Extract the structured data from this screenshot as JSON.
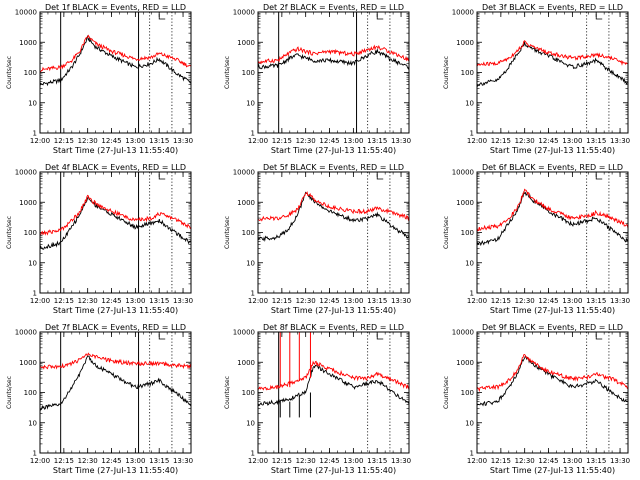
{
  "chart_data": [
    {
      "type": "line",
      "title": "Det 1f BLACK = Events, RED = LLD",
      "xlabel": "Start Time (27-Jul-13 11:55:40)",
      "ylabel": "Counts/sec",
      "yscale": "log",
      "ylim": [
        1,
        10000
      ],
      "xlim": [
        "12:00",
        "13:35"
      ],
      "xticks": [
        "12:00",
        "12:15",
        "12:30",
        "12:45",
        "13:00",
        "13:15",
        "13:30"
      ],
      "yticks": [
        "1",
        "10",
        "100",
        "1000",
        "10000"
      ],
      "vlines_solid": [
        "12:13",
        "13:02"
      ],
      "vlines_dotted": [
        "13:09",
        "13:23"
      ],
      "x": [
        "12:00",
        "12:13",
        "12:20",
        "12:25",
        "12:30",
        "12:35",
        "12:45",
        "13:00",
        "13:10",
        "13:15",
        "13:25",
        "13:35"
      ],
      "series": [
        {
          "name": "BLACK = Events",
          "color": "#000000",
          "values": [
            40,
            55,
            150,
            400,
            1400,
            700,
            350,
            150,
            200,
            280,
            100,
            45
          ]
        },
        {
          "name": "RED = LLD",
          "color": "#ff0000",
          "values": [
            120,
            150,
            250,
            500,
            1600,
            900,
            500,
            280,
            320,
            420,
            280,
            150
          ]
        }
      ]
    },
    {
      "type": "line",
      "title": "Det 2f BLACK = Events, RED = LLD",
      "xlabel": "Start Time (27-Jul-13 11:55:40)",
      "ylabel": "Counts/sec",
      "yscale": "log",
      "ylim": [
        1,
        10000
      ],
      "xlim": [
        "12:00",
        "13:35"
      ],
      "xticks": [
        "12:00",
        "12:15",
        "12:30",
        "12:45",
        "13:00",
        "13:15",
        "13:30"
      ],
      "yticks": [
        "1",
        "10",
        "100",
        "1000",
        "10000"
      ],
      "vlines_solid": [
        "12:13",
        "13:02"
      ],
      "vlines_dotted": [
        "13:09",
        "13:23"
      ],
      "x": [
        "12:00",
        "12:13",
        "12:20",
        "12:25",
        "12:30",
        "12:35",
        "12:45",
        "13:00",
        "13:10",
        "13:15",
        "13:25",
        "13:35"
      ],
      "series": [
        {
          "name": "BLACK = Events",
          "color": "#000000",
          "values": [
            150,
            170,
            300,
            380,
            300,
            250,
            250,
            200,
            400,
            500,
            250,
            150
          ]
        },
        {
          "name": "RED = LLD",
          "color": "#ff0000",
          "values": [
            220,
            260,
            450,
            600,
            500,
            420,
            500,
            400,
            600,
            700,
            450,
            260
          ]
        }
      ]
    },
    {
      "type": "line",
      "title": "Det 3f BLACK = Events, RED = LLD",
      "xlabel": "Start Time (27-Jul-13 11:55:40)",
      "ylabel": "Counts/sec",
      "yscale": "log",
      "ylim": [
        1,
        10000
      ],
      "xlim": [
        "12:00",
        "13:35"
      ],
      "xticks": [
        "12:00",
        "12:15",
        "12:30",
        "12:45",
        "13:00",
        "13:15",
        "13:30"
      ],
      "yticks": [
        "1",
        "10",
        "100",
        "1000",
        "10000"
      ],
      "vlines_solid": [],
      "vlines_dotted": [
        "13:09",
        "13:23"
      ],
      "x": [
        "12:00",
        "12:13",
        "12:20",
        "12:25",
        "12:30",
        "12:35",
        "12:45",
        "13:00",
        "13:10",
        "13:15",
        "13:25",
        "13:35"
      ],
      "series": [
        {
          "name": "BLACK = Events",
          "color": "#000000",
          "values": [
            40,
            55,
            150,
            400,
            900,
            600,
            350,
            150,
            200,
            250,
            100,
            45
          ]
        },
        {
          "name": "RED = LLD",
          "color": "#ff0000",
          "values": [
            180,
            200,
            300,
            500,
            1000,
            700,
            450,
            300,
            350,
            400,
            300,
            180
          ]
        }
      ]
    },
    {
      "type": "line",
      "title": "Det 4f BLACK = Events, RED = LLD",
      "xlabel": "Start Time (27-Jul-13 11:55:40)",
      "ylabel": "Counts/sec",
      "yscale": "log",
      "ylim": [
        1,
        10000
      ],
      "xlim": [
        "12:00",
        "13:35"
      ],
      "xticks": [
        "12:00",
        "12:15",
        "12:30",
        "12:45",
        "13:00",
        "13:15",
        "13:30"
      ],
      "yticks": [
        "1",
        "10",
        "100",
        "1000",
        "10000"
      ],
      "vlines_solid": [
        "12:13",
        "13:02"
      ],
      "vlines_dotted": [
        "13:09",
        "13:23"
      ],
      "x": [
        "12:00",
        "12:13",
        "12:20",
        "12:25",
        "12:30",
        "12:35",
        "12:45",
        "13:00",
        "13:10",
        "13:15",
        "13:25",
        "13:35"
      ],
      "series": [
        {
          "name": "BLACK = Events",
          "color": "#000000",
          "values": [
            30,
            45,
            150,
            400,
            1400,
            800,
            400,
            150,
            200,
            250,
            100,
            45
          ]
        },
        {
          "name": "RED = LLD",
          "color": "#ff0000",
          "values": [
            90,
            120,
            250,
            500,
            1500,
            900,
            500,
            250,
            300,
            420,
            280,
            150
          ]
        }
      ]
    },
    {
      "type": "line",
      "title": "Det 5f BLACK = Events, RED = LLD",
      "xlabel": "Start Time (27-Jul-13 11:55:40)",
      "ylabel": "Counts/sec",
      "yscale": "log",
      "ylim": [
        1,
        10000
      ],
      "xlim": [
        "12:00",
        "13:35"
      ],
      "xticks": [
        "12:00",
        "12:15",
        "12:30",
        "12:45",
        "13:00",
        "13:15",
        "13:30"
      ],
      "yticks": [
        "1",
        "10",
        "100",
        "1000",
        "10000"
      ],
      "vlines_solid": [],
      "vlines_dotted": [
        "13:09",
        "13:23"
      ],
      "x": [
        "12:00",
        "12:13",
        "12:20",
        "12:25",
        "12:30",
        "12:35",
        "12:45",
        "13:00",
        "13:10",
        "13:15",
        "13:25",
        "13:35"
      ],
      "series": [
        {
          "name": "BLACK = Events",
          "color": "#000000",
          "values": [
            60,
            70,
            150,
            400,
            2000,
            1100,
            500,
            250,
            300,
            380,
            150,
            70
          ]
        },
        {
          "name": "RED = LLD",
          "color": "#ff0000",
          "values": [
            280,
            300,
            400,
            600,
            2200,
            1300,
            700,
            500,
            500,
            650,
            450,
            300
          ]
        }
      ]
    },
    {
      "type": "line",
      "title": "Det 6f BLACK = Events, RED = LLD",
      "xlabel": "Start Time (27-Jul-13 11:55:40)",
      "ylabel": "Counts/sec",
      "yscale": "log",
      "ylim": [
        1,
        10000
      ],
      "xlim": [
        "12:00",
        "13:35"
      ],
      "xticks": [
        "12:00",
        "12:15",
        "12:30",
        "12:45",
        "13:00",
        "13:15",
        "13:30"
      ],
      "yticks": [
        "1",
        "10",
        "100",
        "1000",
        "10000"
      ],
      "vlines_solid": [],
      "vlines_dotted": [
        "13:09",
        "13:23"
      ],
      "x": [
        "12:00",
        "12:13",
        "12:20",
        "12:25",
        "12:30",
        "12:35",
        "12:45",
        "13:00",
        "13:10",
        "13:15",
        "13:25",
        "13:35"
      ],
      "series": [
        {
          "name": "BLACK = Events",
          "color": "#000000",
          "values": [
            40,
            60,
            200,
            500,
            2200,
            1200,
            500,
            180,
            250,
            300,
            120,
            50
          ]
        },
        {
          "name": "RED = LLD",
          "color": "#ff0000",
          "values": [
            130,
            160,
            300,
            600,
            2400,
            1300,
            600,
            300,
            350,
            450,
            300,
            160
          ]
        }
      ]
    },
    {
      "type": "line",
      "title": "Det 7f BLACK = Events, RED = LLD",
      "xlabel": "Start Time (27-Jul-13 11:55:40)",
      "ylabel": "Counts/sec",
      "yscale": "log",
      "ylim": [
        1,
        10000
      ],
      "xlim": [
        "12:00",
        "13:35"
      ],
      "xticks": [
        "12:00",
        "12:15",
        "12:30",
        "12:45",
        "13:00",
        "13:15",
        "13:30"
      ],
      "yticks": [
        "1",
        "10",
        "100",
        "1000",
        "10000"
      ],
      "vlines_solid": [
        "12:13",
        "13:02"
      ],
      "vlines_dotted": [
        "13:09",
        "13:23"
      ],
      "x": [
        "12:00",
        "12:13",
        "12:20",
        "12:25",
        "12:30",
        "12:35",
        "12:45",
        "13:00",
        "13:10",
        "13:15",
        "13:25",
        "13:35"
      ],
      "series": [
        {
          "name": "BLACK = Events",
          "color": "#000000",
          "values": [
            30,
            40,
            150,
            400,
            1600,
            800,
            400,
            150,
            200,
            250,
            100,
            40
          ]
        },
        {
          "name": "RED = LLD",
          "color": "#ff0000",
          "values": [
            700,
            700,
            900,
            1200,
            1800,
            1500,
            1100,
            900,
            900,
            900,
            800,
            700
          ]
        }
      ]
    },
    {
      "type": "line",
      "title": "Det 8f BLACK = Events, RED = LLD",
      "xlabel": "Start Time (27-Jul-13 11:55:40)",
      "ylabel": "Counts/sec",
      "yscale": "log",
      "ylim": [
        1,
        10000
      ],
      "xlim": [
        "12:00",
        "13:35"
      ],
      "xticks": [
        "12:00",
        "12:15",
        "12:30",
        "12:45",
        "13:00",
        "13:15",
        "13:30"
      ],
      "yticks": [
        "1",
        "10",
        "100",
        "1000",
        "10000"
      ],
      "vlines_solid": [
        "12:13"
      ],
      "vlines_dotted": [
        "13:09",
        "13:23"
      ],
      "x": [
        "12:00",
        "12:13",
        "12:20",
        "12:25",
        "12:30",
        "12:35",
        "12:45",
        "13:00",
        "13:10",
        "13:15",
        "13:25",
        "13:35"
      ],
      "series": [
        {
          "name": "BLACK = Events",
          "color": "#000000",
          "values": [
            40,
            50,
            60,
            80,
            100,
            800,
            400,
            150,
            200,
            250,
            100,
            45
          ]
        },
        {
          "name": "RED = LLD",
          "color": "#ff0000",
          "values": [
            130,
            150,
            200,
            250,
            300,
            1000,
            600,
            300,
            300,
            400,
            260,
            140
          ]
        }
      ],
      "spikes": [
        {
          "series": "RED = LLD",
          "x": "12:14",
          "value": 10000
        },
        {
          "series": "RED = LLD",
          "x": "12:20",
          "value": 10000
        },
        {
          "series": "RED = LLD",
          "x": "12:26",
          "value": 10000
        },
        {
          "series": "RED = LLD",
          "x": "12:33",
          "value": 10000
        },
        {
          "series": "BLACK = Events",
          "x": "12:14",
          "value": 15
        },
        {
          "series": "BLACK = Events",
          "x": "12:20",
          "value": 15
        },
        {
          "series": "BLACK = Events",
          "x": "12:26",
          "value": 15
        },
        {
          "series": "BLACK = Events",
          "x": "12:33",
          "value": 15
        }
      ]
    },
    {
      "type": "line",
      "title": "Det 9f BLACK = Events, RED = LLD",
      "xlabel": "Start Time (27-Jul-13 11:55:40)",
      "ylabel": "Counts/sec",
      "yscale": "log",
      "ylim": [
        1,
        10000
      ],
      "xlim": [
        "12:00",
        "13:35"
      ],
      "xticks": [
        "12:00",
        "12:15",
        "12:30",
        "12:45",
        "13:00",
        "13:15",
        "13:30"
      ],
      "yticks": [
        "1",
        "10",
        "100",
        "1000",
        "10000"
      ],
      "vlines_solid": [],
      "vlines_dotted": [
        "13:09",
        "13:23"
      ],
      "x": [
        "12:00",
        "12:13",
        "12:20",
        "12:25",
        "12:30",
        "12:35",
        "12:45",
        "13:00",
        "13:10",
        "13:15",
        "13:25",
        "13:35"
      ],
      "series": [
        {
          "name": "BLACK = Events",
          "color": "#000000",
          "values": [
            40,
            50,
            150,
            400,
            1600,
            900,
            400,
            150,
            200,
            250,
            100,
            45
          ]
        },
        {
          "name": "RED = LLD",
          "color": "#ff0000",
          "values": [
            130,
            150,
            250,
            500,
            1800,
            1000,
            500,
            280,
            320,
            400,
            280,
            150
          ]
        }
      ]
    }
  ]
}
